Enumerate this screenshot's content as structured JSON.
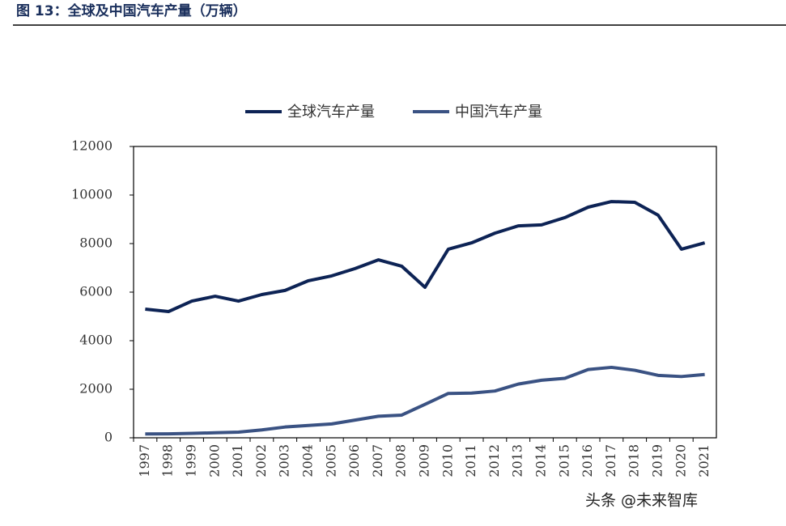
{
  "chart_data": {
    "type": "line",
    "title": "图 13：全球及中国汽车产量（万辆）",
    "watermark": "头条 @未来智库",
    "categories": [
      "1997",
      "1998",
      "1999",
      "2000",
      "2001",
      "2002",
      "2003",
      "2004",
      "2005",
      "2006",
      "2007",
      "2008",
      "2009",
      "2010",
      "2011",
      "2012",
      "2013",
      "2014",
      "2015",
      "2016",
      "2017",
      "2018",
      "2019",
      "2020",
      "2021"
    ],
    "series": [
      {
        "name": "全球汽车产量",
        "color": "#0d2355",
        "values": [
          5300,
          5200,
          5630,
          5830,
          5630,
          5900,
          6070,
          6470,
          6670,
          6970,
          7330,
          7070,
          6200,
          7770,
          8030,
          8430,
          8730,
          8770,
          9070,
          9500,
          9730,
          9700,
          9170,
          7770,
          8030
        ]
      },
      {
        "name": "中国汽车产量",
        "color": "#3a5283",
        "values": [
          158,
          163,
          183,
          207,
          234,
          325,
          444,
          507,
          570,
          728,
          888,
          935,
          1379,
          1826,
          1842,
          1927,
          2212,
          2372,
          2450,
          2812,
          2902,
          2781,
          2572,
          2523,
          2608
        ]
      }
    ],
    "ylim": [
      0,
      12000
    ],
    "yticks": [
      0,
      2000,
      4000,
      6000,
      8000,
      10000,
      12000
    ],
    "legend": "top"
  }
}
